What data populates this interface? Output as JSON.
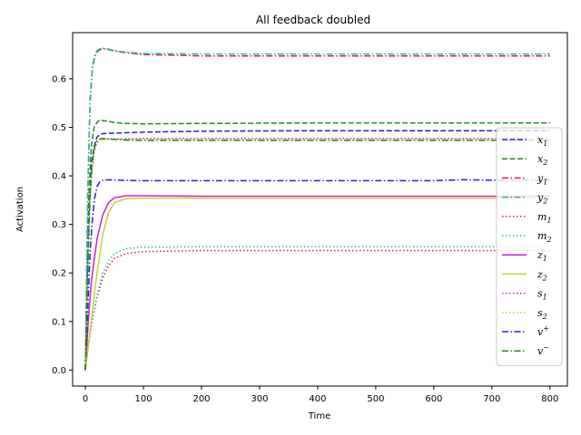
{
  "chart_data": {
    "type": "line",
    "title": "All feedback doubled",
    "xlabel": "Time",
    "ylabel": "Activation",
    "xlim": [
      -22,
      830
    ],
    "ylim": [
      -0.033,
      0.695
    ],
    "xticks": [
      0,
      100,
      200,
      300,
      400,
      500,
      600,
      700,
      800
    ],
    "yticks": [
      0.0,
      0.1,
      0.2,
      0.3,
      0.4,
      0.5,
      0.6
    ],
    "ytick_labels": [
      "0.0",
      "0.1",
      "0.2",
      "0.3",
      "0.4",
      "0.5",
      "0.6"
    ],
    "grid": false,
    "legend_position": "right",
    "series": [
      {
        "name": "x",
        "sub": "1",
        "sup": "",
        "color": "#2222cc",
        "style": "dashed",
        "points": [
          [
            0,
            0
          ],
          [
            5,
            0.3
          ],
          [
            10,
            0.42
          ],
          [
            15,
            0.46
          ],
          [
            20,
            0.48
          ],
          [
            25,
            0.485
          ],
          [
            30,
            0.487
          ],
          [
            50,
            0.488
          ],
          [
            100,
            0.49
          ],
          [
            200,
            0.492
          ],
          [
            400,
            0.493
          ],
          [
            800,
            0.493
          ]
        ]
      },
      {
        "name": "x",
        "sub": "2",
        "sup": "",
        "color": "#228822",
        "style": "dashed",
        "points": [
          [
            0,
            0
          ],
          [
            5,
            0.33
          ],
          [
            10,
            0.46
          ],
          [
            15,
            0.5
          ],
          [
            20,
            0.51
          ],
          [
            25,
            0.515
          ],
          [
            35,
            0.513
          ],
          [
            50,
            0.51
          ],
          [
            70,
            0.508
          ],
          [
            100,
            0.507
          ],
          [
            200,
            0.508
          ],
          [
            400,
            0.509
          ],
          [
            800,
            0.509
          ]
        ]
      },
      {
        "name": "y",
        "sub": "1",
        "sup": "",
        "color": "#dd2222",
        "style": "dashdot",
        "points": [
          [
            0,
            0
          ],
          [
            4,
            0.36
          ],
          [
            8,
            0.55
          ],
          [
            12,
            0.62
          ],
          [
            16,
            0.645
          ],
          [
            20,
            0.655
          ],
          [
            25,
            0.66
          ],
          [
            30,
            0.662
          ],
          [
            40,
            0.66
          ],
          [
            60,
            0.655
          ],
          [
            100,
            0.65
          ],
          [
            200,
            0.647
          ],
          [
            400,
            0.647
          ],
          [
            800,
            0.647
          ]
        ]
      },
      {
        "name": "y",
        "sub": "2",
        "sup": "",
        "color": "#22bbbb",
        "style": "dashdot",
        "points": [
          [
            0,
            0
          ],
          [
            4,
            0.37
          ],
          [
            8,
            0.56
          ],
          [
            12,
            0.625
          ],
          [
            16,
            0.648
          ],
          [
            20,
            0.658
          ],
          [
            25,
            0.662
          ],
          [
            30,
            0.663
          ],
          [
            40,
            0.661
          ],
          [
            60,
            0.656
          ],
          [
            100,
            0.652
          ],
          [
            200,
            0.651
          ],
          [
            400,
            0.651
          ],
          [
            800,
            0.651
          ]
        ]
      },
      {
        "name": "m",
        "sub": "1",
        "sup": "",
        "color": "#dd2222",
        "style": "dotted",
        "points": [
          [
            0,
            0
          ],
          [
            5,
            0.05
          ],
          [
            10,
            0.09
          ],
          [
            20,
            0.15
          ],
          [
            30,
            0.19
          ],
          [
            40,
            0.215
          ],
          [
            50,
            0.23
          ],
          [
            70,
            0.24
          ],
          [
            100,
            0.244
          ],
          [
            200,
            0.246
          ],
          [
            400,
            0.246
          ],
          [
            800,
            0.246
          ]
        ]
      },
      {
        "name": "m",
        "sub": "2",
        "sup": "",
        "color": "#22bbbb",
        "style": "dotted",
        "points": [
          [
            0,
            0
          ],
          [
            5,
            0.05
          ],
          [
            10,
            0.09
          ],
          [
            20,
            0.155
          ],
          [
            30,
            0.2
          ],
          [
            40,
            0.225
          ],
          [
            50,
            0.24
          ],
          [
            70,
            0.25
          ],
          [
            100,
            0.253
          ],
          [
            200,
            0.254
          ],
          [
            400,
            0.254
          ],
          [
            800,
            0.254
          ]
        ]
      },
      {
        "name": "z",
        "sub": "1",
        "sup": "",
        "color": "#cc22cc",
        "style": "solid",
        "points": [
          [
            0,
            0
          ],
          [
            5,
            0.1
          ],
          [
            10,
            0.18
          ],
          [
            20,
            0.27
          ],
          [
            30,
            0.32
          ],
          [
            40,
            0.345
          ],
          [
            50,
            0.355
          ],
          [
            70,
            0.359
          ],
          [
            100,
            0.359
          ],
          [
            200,
            0.358
          ],
          [
            400,
            0.358
          ],
          [
            800,
            0.358
          ]
        ]
      },
      {
        "name": "z",
        "sub": "2",
        "sup": "",
        "color": "#cccc33",
        "style": "solid",
        "points": [
          [
            0,
            0
          ],
          [
            5,
            0.05
          ],
          [
            10,
            0.1
          ],
          [
            20,
            0.2
          ],
          [
            30,
            0.28
          ],
          [
            40,
            0.325
          ],
          [
            50,
            0.345
          ],
          [
            70,
            0.353
          ],
          [
            100,
            0.354
          ],
          [
            200,
            0.354
          ],
          [
            400,
            0.354
          ],
          [
            800,
            0.354
          ]
        ]
      },
      {
        "name": "s",
        "sub": "1",
        "sup": "",
        "color": "#cc22cc",
        "style": "dotted",
        "points": [
          [
            0,
            0
          ],
          [
            4,
            0.2
          ],
          [
            8,
            0.35
          ],
          [
            12,
            0.42
          ],
          [
            16,
            0.455
          ],
          [
            20,
            0.47
          ],
          [
            25,
            0.475
          ],
          [
            30,
            0.476
          ],
          [
            50,
            0.476
          ],
          [
            100,
            0.477
          ],
          [
            200,
            0.477
          ],
          [
            400,
            0.477
          ],
          [
            800,
            0.477
          ]
        ]
      },
      {
        "name": "s",
        "sub": "2",
        "sup": "",
        "color": "#cccc33",
        "style": "dotted",
        "points": [
          [
            0,
            0
          ],
          [
            4,
            0.19
          ],
          [
            8,
            0.34
          ],
          [
            12,
            0.41
          ],
          [
            16,
            0.45
          ],
          [
            20,
            0.465
          ],
          [
            25,
            0.472
          ],
          [
            30,
            0.474
          ],
          [
            50,
            0.475
          ],
          [
            100,
            0.475
          ],
          [
            200,
            0.475
          ],
          [
            400,
            0.475
          ],
          [
            800,
            0.475
          ]
        ]
      },
      {
        "name": "v",
        "sub": "",
        "sup": "+",
        "color": "#2222cc",
        "style": "dashdot",
        "points": [
          [
            0,
            0
          ],
          [
            4,
            0.12
          ],
          [
            8,
            0.24
          ],
          [
            12,
            0.31
          ],
          [
            16,
            0.355
          ],
          [
            20,
            0.378
          ],
          [
            25,
            0.388
          ],
          [
            30,
            0.391
          ],
          [
            40,
            0.392
          ],
          [
            60,
            0.391
          ],
          [
            100,
            0.39
          ],
          [
            200,
            0.39
          ],
          [
            400,
            0.39
          ],
          [
            600,
            0.39
          ],
          [
            650,
            0.392
          ],
          [
            700,
            0.391
          ],
          [
            800,
            0.391
          ]
        ]
      },
      {
        "name": "v",
        "sub": "",
        "sup": "−",
        "color": "#228822",
        "style": "dashdot",
        "points": [
          [
            0,
            0
          ],
          [
            4,
            0.2
          ],
          [
            8,
            0.36
          ],
          [
            12,
            0.43
          ],
          [
            16,
            0.46
          ],
          [
            20,
            0.472
          ],
          [
            25,
            0.476
          ],
          [
            30,
            0.477
          ],
          [
            40,
            0.476
          ],
          [
            60,
            0.474
          ],
          [
            100,
            0.473
          ],
          [
            200,
            0.473
          ],
          [
            400,
            0.473
          ],
          [
            800,
            0.473
          ]
        ]
      }
    ]
  }
}
